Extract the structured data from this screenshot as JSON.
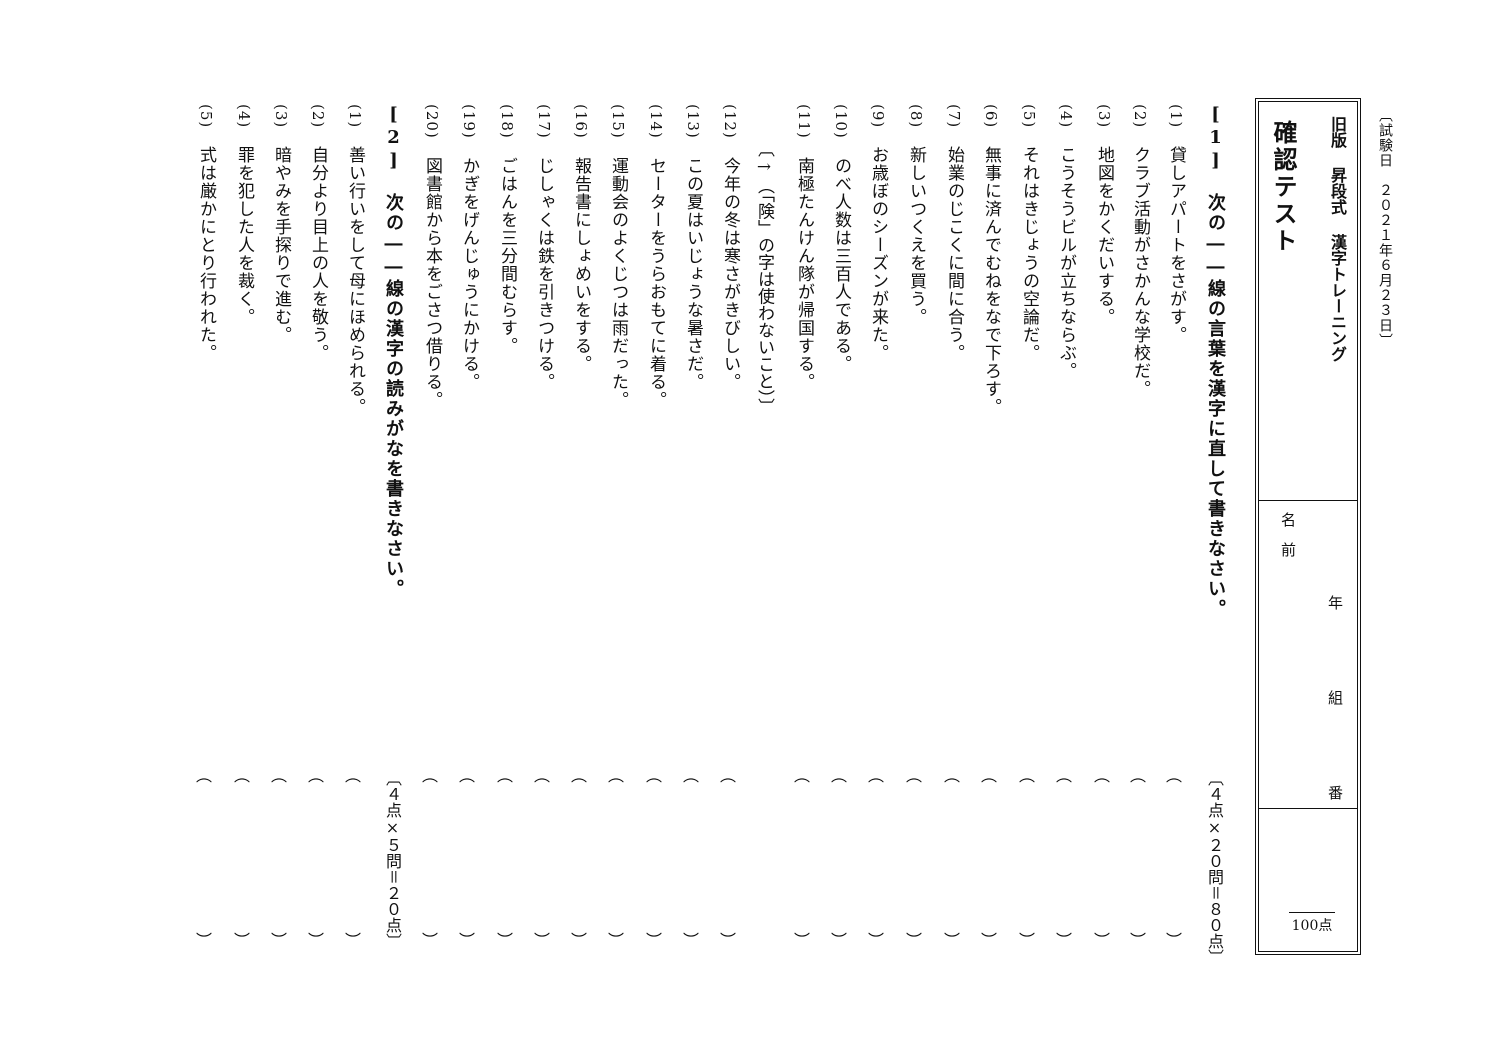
{
  "test_date": "〔試験日　２０２１年６月２３日〕",
  "header": {
    "series_title": "旧版 昇段式 漢字トレーニング",
    "test_title": "確認テスト",
    "name_label": "名　前",
    "year_label": "年",
    "class_label": "組",
    "number_label": "番",
    "total_score": "100点"
  },
  "section1": {
    "instruction": "[1]　次の――線の言葉を漢字に直して書きなさい。",
    "points": "〔４点×２０問＝８０点〕",
    "note": "〔→（「険」の字は使わないこと）〕",
    "questions": [
      {
        "num": "(1)",
        "text": "貸しアパートをさがす。"
      },
      {
        "num": "(2)",
        "text": "クラブ活動がさかんな学校だ。"
      },
      {
        "num": "(3)",
        "text": "地図をかくだいする。"
      },
      {
        "num": "(4)",
        "text": "こうそうビルが立ちならぶ。"
      },
      {
        "num": "(5)",
        "text": "それはきじょうの空論だ。"
      },
      {
        "num": "(6)",
        "text": "無事に済んでむねをなで下ろす。"
      },
      {
        "num": "(7)",
        "text": "始業のじこくに間に合う。"
      },
      {
        "num": "(8)",
        "text": "新しいつくえを買う。"
      },
      {
        "num": "(9)",
        "text": "お歳ぼのシーズンが来た。"
      },
      {
        "num": "(10)",
        "text": "のべ人数は三百人である。"
      },
      {
        "num": "(11)",
        "text": "南極たんけん隊が帰国する。"
      },
      {
        "num": "(12)",
        "text": "今年の冬は寒さがきびしい。"
      },
      {
        "num": "(13)",
        "text": "この夏はいじょうな暑さだ。"
      },
      {
        "num": "(14)",
        "text": "セーターをうらおもてに着る。"
      },
      {
        "num": "(15)",
        "text": "運動会のよくじつは雨だった。"
      },
      {
        "num": "(16)",
        "text": "報告書にしょめいをする。"
      },
      {
        "num": "(17)",
        "text": "じしゃくは鉄を引きつける。"
      },
      {
        "num": "(18)",
        "text": "ごはんを三分間むらす。"
      },
      {
        "num": "(19)",
        "text": "かぎをげんじゅうにかける。"
      },
      {
        "num": "(20)",
        "text": "図書館から本をごさつ借りる。"
      }
    ]
  },
  "section2": {
    "instruction": "[2]　次の――線の漢字の読みがなを書きなさい。",
    "points": "〔４点×５問＝２０点〕",
    "questions": [
      {
        "num": "(1)",
        "text": "善い行いをして母にほめられる。"
      },
      {
        "num": "(2)",
        "text": "自分より目上の人を敬う。"
      },
      {
        "num": "(3)",
        "text": "暗やみを手探りで進む。"
      },
      {
        "num": "(4)",
        "text": "罪を犯した人を裁く。"
      },
      {
        "num": "(5)",
        "text": "式は厳かにとり行われた。"
      }
    ]
  },
  "paren": {
    "open": "︵",
    "close": "︶"
  }
}
